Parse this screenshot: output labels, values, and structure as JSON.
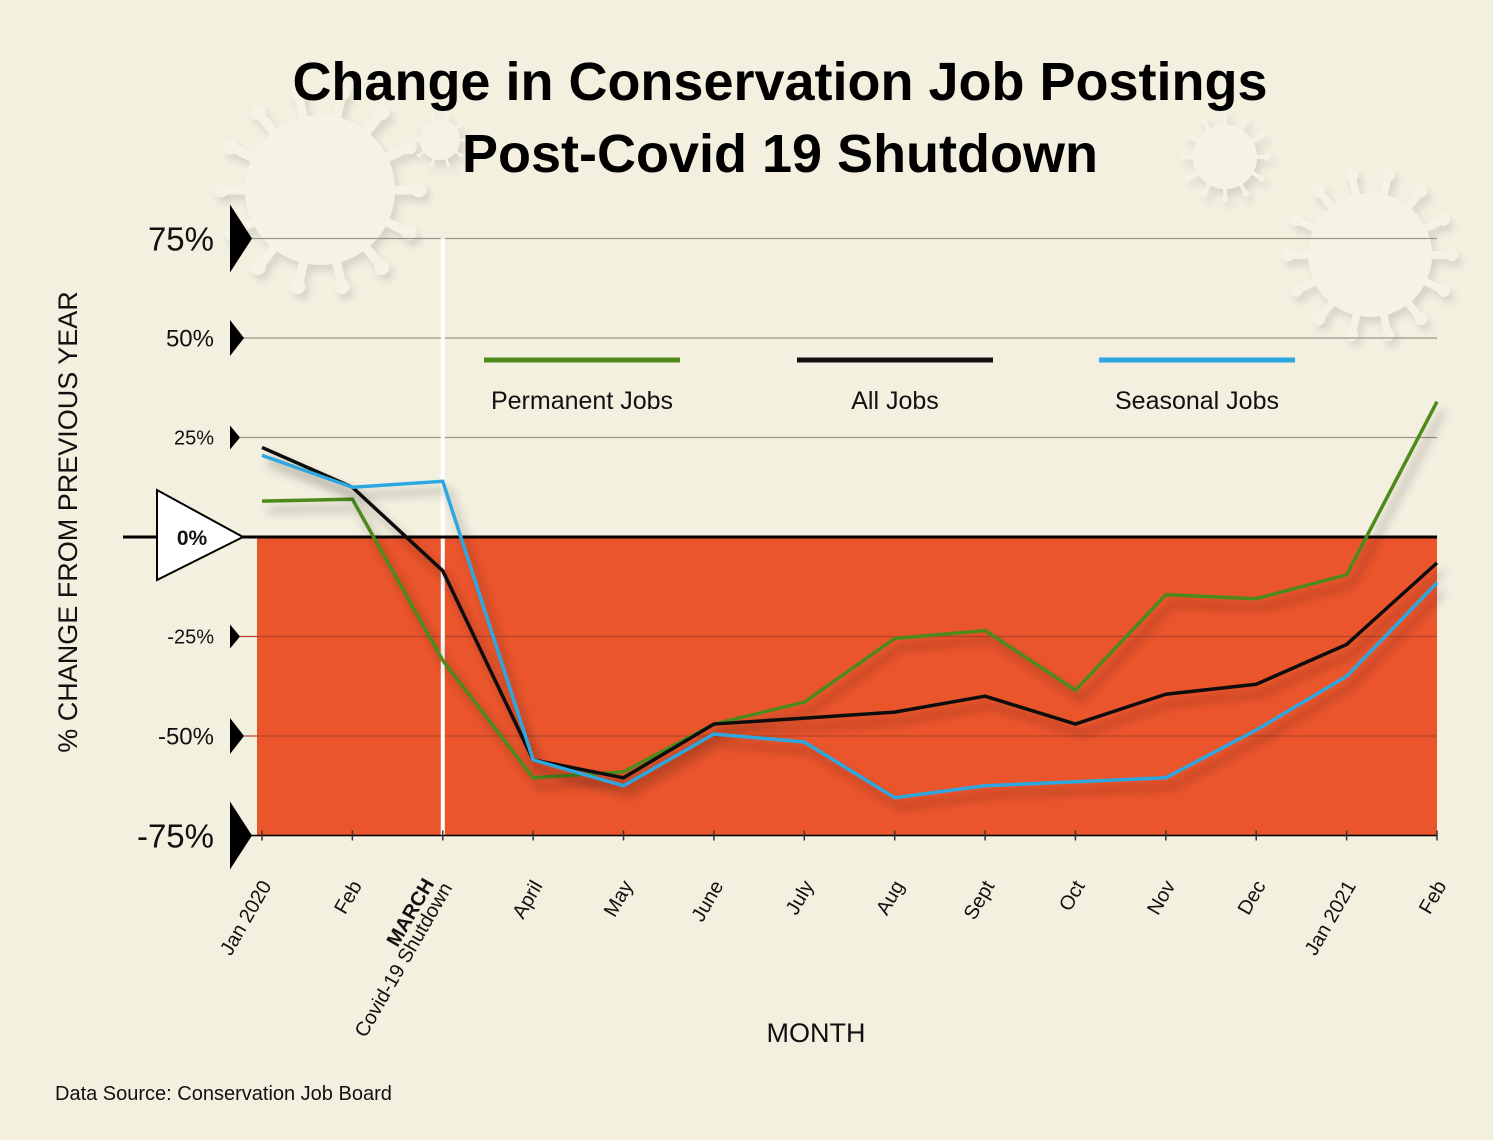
{
  "chart_data": {
    "type": "line",
    "title_lines": [
      "Change in Conservation Job Postings",
      "Post-Covid 19 Shutdown"
    ],
    "xlabel": "MONTH",
    "ylabel": "% CHANGE FROM PREVIOUS YEAR",
    "x": [
      "Jan 2020",
      "Feb",
      "MARCH",
      "April",
      "May",
      "June",
      "July",
      "Aug",
      "Sept",
      "Oct",
      "Nov",
      "Dec",
      "Jan 2021",
      "Feb"
    ],
    "x_annotation": {
      "index": 2,
      "label": "MARCH",
      "sublabel": "Covid-19 Shutdown"
    },
    "yticks": [
      {
        "value": 75,
        "label": "75%"
      },
      {
        "value": 50,
        "label": "50%"
      },
      {
        "value": 25,
        "label": "25%"
      },
      {
        "value": 0,
        "label": "0%"
      },
      {
        "value": -25,
        "label": "-25%"
      },
      {
        "value": -50,
        "label": "-50%"
      },
      {
        "value": -75,
        "label": "-75%"
      }
    ],
    "ylim": [
      -75,
      75
    ],
    "grid": true,
    "negative_region_fill": "#eb552c",
    "legend_position": "top-center",
    "series": [
      {
        "name": "Permanent Jobs",
        "color": "#4e8a1c",
        "values": [
          9,
          9.5,
          -31,
          -60.5,
          -59,
          -47,
          -41.5,
          -25.5,
          -23.5,
          -38.5,
          -14.5,
          -15.5,
          -9.5,
          34
        ]
      },
      {
        "name": "All Jobs",
        "color": "#111111",
        "values": [
          22.5,
          12.5,
          -8.5,
          -56,
          -60.5,
          -47,
          -45.5,
          -44,
          -40,
          -47,
          -39.5,
          -37,
          -27,
          -6.5
        ]
      },
      {
        "name": "Seasonal Jobs",
        "color": "#2ea6df",
        "values": [
          20.5,
          12.5,
          14,
          -56,
          -62.5,
          -49.5,
          -51.5,
          -65.5,
          -62.5,
          -61.5,
          -60.5,
          -48.5,
          -35,
          -11.5
        ]
      }
    ]
  },
  "footer": {
    "source": "Data Source: Conservation Job Board"
  },
  "colors": {
    "background": "#f3f0e0",
    "accent": "#eb552c",
    "zero_label": "#eb552c"
  }
}
